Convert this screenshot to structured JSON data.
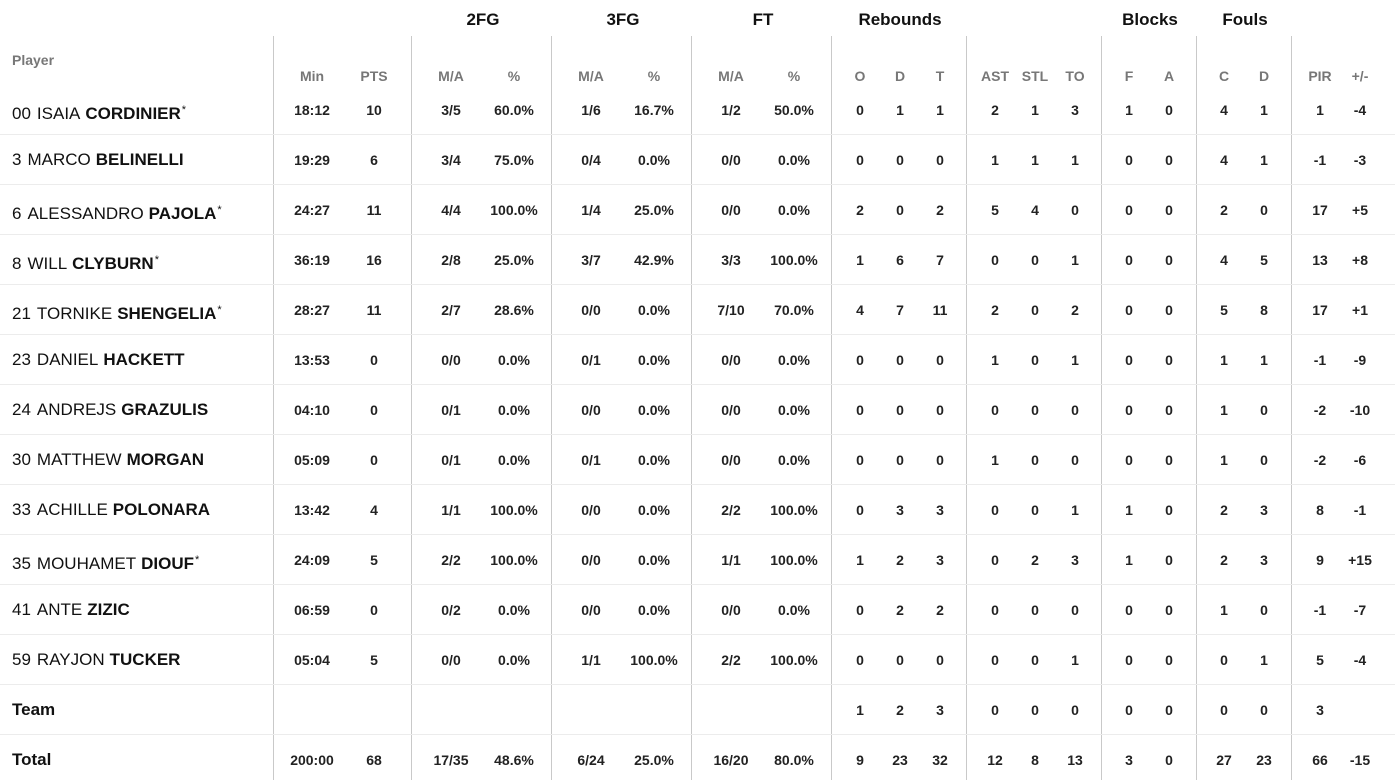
{
  "groups": {
    "fg2": "2FG",
    "fg3": "3FG",
    "ft": "FT",
    "rebounds": "Rebounds",
    "blocks": "Blocks",
    "fouls": "Fouls"
  },
  "headers": {
    "player": "Player",
    "min": "Min",
    "pts": "PTS",
    "fg2_ma": "M/A",
    "fg2_pct": "%",
    "fg3_ma": "M/A",
    "fg3_pct": "%",
    "ft_ma": "M/A",
    "ft_pct": "%",
    "reb_o": "O",
    "reb_d": "D",
    "reb_t": "T",
    "ast": "AST",
    "stl": "STL",
    "to": "TO",
    "blk_f": "F",
    "blk_a": "A",
    "foul_c": "C",
    "foul_d": "D",
    "pir": "PIR",
    "pm": "+/-"
  },
  "players": [
    {
      "number": "00",
      "first": "ISAIA",
      "last": "CORDINIER",
      "star": "*",
      "min": "18:12",
      "pts": "10",
      "fg2_ma": "3/5",
      "fg2_pct": "60.0%",
      "fg3_ma": "1/6",
      "fg3_pct": "16.7%",
      "ft_ma": "1/2",
      "ft_pct": "50.0%",
      "reb_o": "0",
      "reb_d": "1",
      "reb_t": "1",
      "ast": "2",
      "stl": "1",
      "to": "3",
      "blk_f": "1",
      "blk_a": "0",
      "foul_c": "4",
      "foul_d": "1",
      "pir": "1",
      "pm": "-4"
    },
    {
      "number": "3",
      "first": "MARCO",
      "last": "BELINELLI",
      "star": "",
      "min": "19:29",
      "pts": "6",
      "fg2_ma": "3/4",
      "fg2_pct": "75.0%",
      "fg3_ma": "0/4",
      "fg3_pct": "0.0%",
      "ft_ma": "0/0",
      "ft_pct": "0.0%",
      "reb_o": "0",
      "reb_d": "0",
      "reb_t": "0",
      "ast": "1",
      "stl": "1",
      "to": "1",
      "blk_f": "0",
      "blk_a": "0",
      "foul_c": "4",
      "foul_d": "1",
      "pir": "-1",
      "pm": "-3"
    },
    {
      "number": "6",
      "first": "ALESSANDRO",
      "last": "PAJOLA",
      "star": "*",
      "min": "24:27",
      "pts": "11",
      "fg2_ma": "4/4",
      "fg2_pct": "100.0%",
      "fg3_ma": "1/4",
      "fg3_pct": "25.0%",
      "ft_ma": "0/0",
      "ft_pct": "0.0%",
      "reb_o": "2",
      "reb_d": "0",
      "reb_t": "2",
      "ast": "5",
      "stl": "4",
      "to": "0",
      "blk_f": "0",
      "blk_a": "0",
      "foul_c": "2",
      "foul_d": "0",
      "pir": "17",
      "pm": "+5"
    },
    {
      "number": "8",
      "first": "WILL",
      "last": "CLYBURN",
      "star": "*",
      "min": "36:19",
      "pts": "16",
      "fg2_ma": "2/8",
      "fg2_pct": "25.0%",
      "fg3_ma": "3/7",
      "fg3_pct": "42.9%",
      "ft_ma": "3/3",
      "ft_pct": "100.0%",
      "reb_o": "1",
      "reb_d": "6",
      "reb_t": "7",
      "ast": "0",
      "stl": "0",
      "to": "1",
      "blk_f": "0",
      "blk_a": "0",
      "foul_c": "4",
      "foul_d": "5",
      "pir": "13",
      "pm": "+8"
    },
    {
      "number": "21",
      "first": "TORNIKE",
      "last": "SHENGELIA",
      "star": "*",
      "min": "28:27",
      "pts": "11",
      "fg2_ma": "2/7",
      "fg2_pct": "28.6%",
      "fg3_ma": "0/0",
      "fg3_pct": "0.0%",
      "ft_ma": "7/10",
      "ft_pct": "70.0%",
      "reb_o": "4",
      "reb_d": "7",
      "reb_t": "11",
      "ast": "2",
      "stl": "0",
      "to": "2",
      "blk_f": "0",
      "blk_a": "0",
      "foul_c": "5",
      "foul_d": "8",
      "pir": "17",
      "pm": "+1"
    },
    {
      "number": "23",
      "first": "DANIEL",
      "last": "HACKETT",
      "star": "",
      "min": "13:53",
      "pts": "0",
      "fg2_ma": "0/0",
      "fg2_pct": "0.0%",
      "fg3_ma": "0/1",
      "fg3_pct": "0.0%",
      "ft_ma": "0/0",
      "ft_pct": "0.0%",
      "reb_o": "0",
      "reb_d": "0",
      "reb_t": "0",
      "ast": "1",
      "stl": "0",
      "to": "1",
      "blk_f": "0",
      "blk_a": "0",
      "foul_c": "1",
      "foul_d": "1",
      "pir": "-1",
      "pm": "-9"
    },
    {
      "number": "24",
      "first": "ANDREJS",
      "last": "GRAZULIS",
      "star": "",
      "min": "04:10",
      "pts": "0",
      "fg2_ma": "0/1",
      "fg2_pct": "0.0%",
      "fg3_ma": "0/0",
      "fg3_pct": "0.0%",
      "ft_ma": "0/0",
      "ft_pct": "0.0%",
      "reb_o": "0",
      "reb_d": "0",
      "reb_t": "0",
      "ast": "0",
      "stl": "0",
      "to": "0",
      "blk_f": "0",
      "blk_a": "0",
      "foul_c": "1",
      "foul_d": "0",
      "pir": "-2",
      "pm": "-10"
    },
    {
      "number": "30",
      "first": "MATTHEW",
      "last": "MORGAN",
      "star": "",
      "min": "05:09",
      "pts": "0",
      "fg2_ma": "0/1",
      "fg2_pct": "0.0%",
      "fg3_ma": "0/1",
      "fg3_pct": "0.0%",
      "ft_ma": "0/0",
      "ft_pct": "0.0%",
      "reb_o": "0",
      "reb_d": "0",
      "reb_t": "0",
      "ast": "1",
      "stl": "0",
      "to": "0",
      "blk_f": "0",
      "blk_a": "0",
      "foul_c": "1",
      "foul_d": "0",
      "pir": "-2",
      "pm": "-6"
    },
    {
      "number": "33",
      "first": "ACHILLE",
      "last": "POLONARA",
      "star": "",
      "min": "13:42",
      "pts": "4",
      "fg2_ma": "1/1",
      "fg2_pct": "100.0%",
      "fg3_ma": "0/0",
      "fg3_pct": "0.0%",
      "ft_ma": "2/2",
      "ft_pct": "100.0%",
      "reb_o": "0",
      "reb_d": "3",
      "reb_t": "3",
      "ast": "0",
      "stl": "0",
      "to": "1",
      "blk_f": "1",
      "blk_a": "0",
      "foul_c": "2",
      "foul_d": "3",
      "pir": "8",
      "pm": "-1"
    },
    {
      "number": "35",
      "first": "MOUHAMET",
      "last": "DIOUF",
      "star": "*",
      "min": "24:09",
      "pts": "5",
      "fg2_ma": "2/2",
      "fg2_pct": "100.0%",
      "fg3_ma": "0/0",
      "fg3_pct": "0.0%",
      "ft_ma": "1/1",
      "ft_pct": "100.0%",
      "reb_o": "1",
      "reb_d": "2",
      "reb_t": "3",
      "ast": "0",
      "stl": "2",
      "to": "3",
      "blk_f": "1",
      "blk_a": "0",
      "foul_c": "2",
      "foul_d": "3",
      "pir": "9",
      "pm": "+15"
    },
    {
      "number": "41",
      "first": "ANTE",
      "last": "ZIZIC",
      "star": "",
      "min": "06:59",
      "pts": "0",
      "fg2_ma": "0/2",
      "fg2_pct": "0.0%",
      "fg3_ma": "0/0",
      "fg3_pct": "0.0%",
      "ft_ma": "0/0",
      "ft_pct": "0.0%",
      "reb_o": "0",
      "reb_d": "2",
      "reb_t": "2",
      "ast": "0",
      "stl": "0",
      "to": "0",
      "blk_f": "0",
      "blk_a": "0",
      "foul_c": "1",
      "foul_d": "0",
      "pir": "-1",
      "pm": "-7"
    },
    {
      "number": "59",
      "first": "RAYJON",
      "last": "TUCKER",
      "star": "",
      "min": "05:04",
      "pts": "5",
      "fg2_ma": "0/0",
      "fg2_pct": "0.0%",
      "fg3_ma": "1/1",
      "fg3_pct": "100.0%",
      "ft_ma": "2/2",
      "ft_pct": "100.0%",
      "reb_o": "0",
      "reb_d": "0",
      "reb_t": "0",
      "ast": "0",
      "stl": "0",
      "to": "1",
      "blk_f": "0",
      "blk_a": "0",
      "foul_c": "0",
      "foul_d": "1",
      "pir": "5",
      "pm": "-4"
    }
  ],
  "team": {
    "label": "Team",
    "min": "",
    "pts": "",
    "fg2_ma": "",
    "fg2_pct": "",
    "fg3_ma": "",
    "fg3_pct": "",
    "ft_ma": "",
    "ft_pct": "",
    "reb_o": "1",
    "reb_d": "2",
    "reb_t": "3",
    "ast": "0",
    "stl": "0",
    "to": "0",
    "blk_f": "0",
    "blk_a": "0",
    "foul_c": "0",
    "foul_d": "0",
    "pir": "3",
    "pm": ""
  },
  "total": {
    "label": "Total",
    "min": "200:00",
    "pts": "68",
    "fg2_ma": "17/35",
    "fg2_pct": "48.6%",
    "fg3_ma": "6/24",
    "fg3_pct": "25.0%",
    "ft_ma": "16/20",
    "ft_pct": "80.0%",
    "reb_o": "9",
    "reb_d": "23",
    "reb_t": "32",
    "ast": "12",
    "stl": "8",
    "to": "13",
    "blk_f": "3",
    "blk_a": "0",
    "foul_c": "27",
    "foul_d": "23",
    "pir": "66",
    "pm": "-15"
  }
}
